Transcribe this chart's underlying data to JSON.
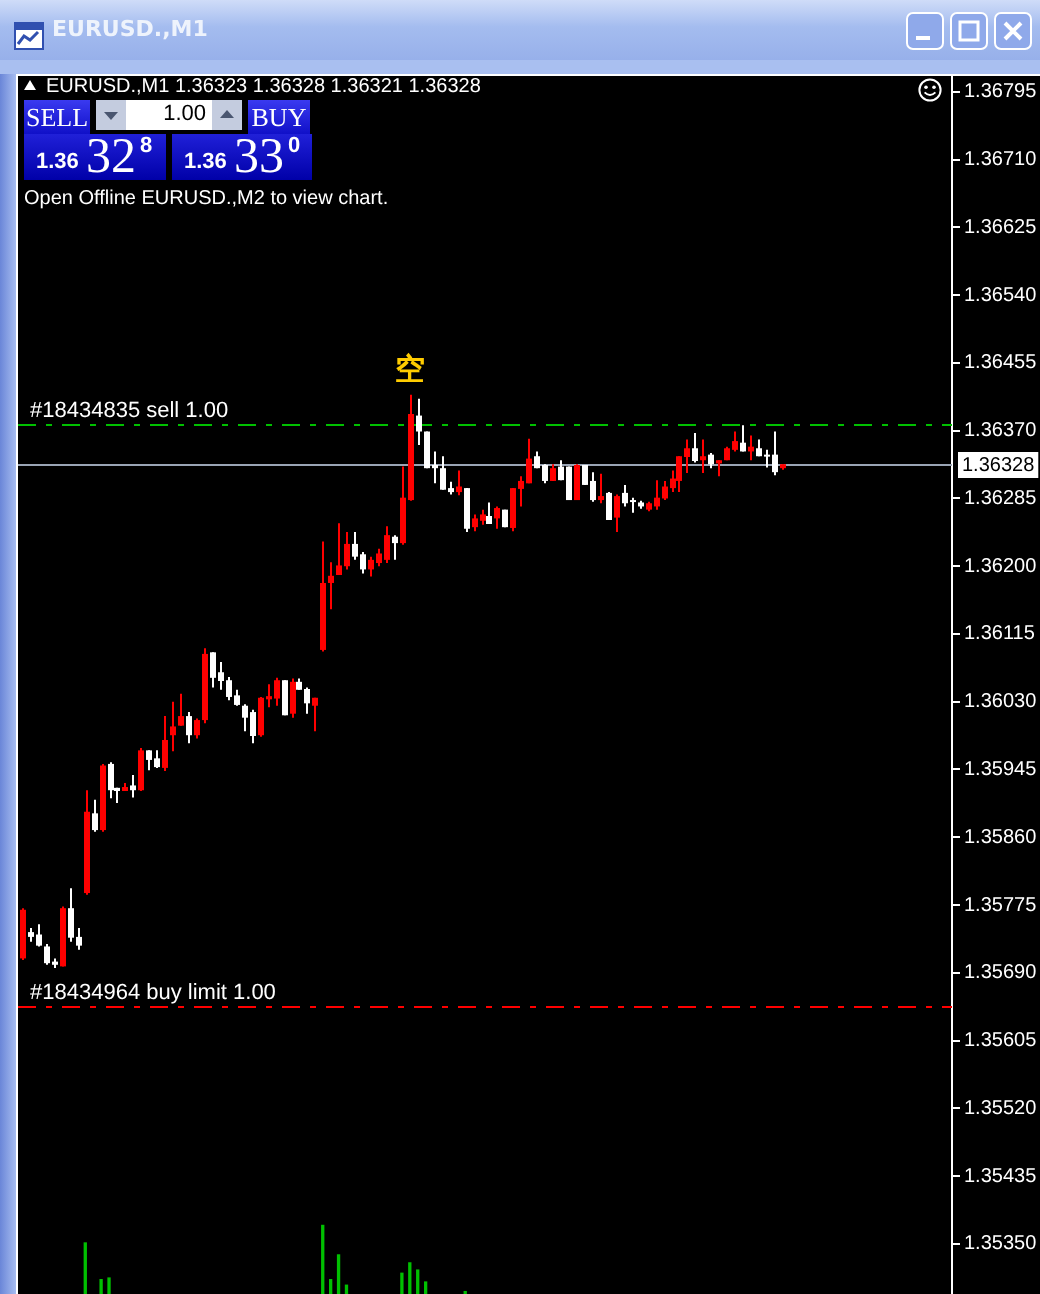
{
  "chart_data": {
    "type": "candlestick",
    "title": "EURUSD.,M1",
    "subtitle": "EURUSD.,M1 1.36323 1.36328 1.36321 1.36328",
    "categories": [
      null,
      null,
      null,
      null,
      null,
      null,
      null,
      null,
      null,
      null,
      null,
      null,
      null,
      null,
      null,
      null,
      null,
      null,
      null,
      null,
      null,
      null,
      null,
      null,
      null,
      null,
      null,
      null,
      null,
      null,
      null,
      null,
      null,
      null,
      null,
      null,
      null,
      null,
      null,
      null,
      null,
      null,
      null,
      null,
      null,
      null,
      null,
      null,
      null,
      null,
      null,
      null,
      null,
      null,
      null,
      null,
      null,
      null,
      null,
      null,
      null,
      null,
      null,
      null,
      null,
      null,
      null,
      null,
      null,
      null,
      null,
      null,
      null,
      null,
      null,
      null,
      null,
      null,
      null,
      null,
      null,
      null,
      null,
      null,
      null,
      null,
      null,
      null,
      null,
      null,
      null,
      null,
      null,
      null,
      null,
      null,
      null,
      null,
      null,
      null,
      null,
      null,
      null,
      null,
      null,
      null,
      null,
      null,
      null,
      null,
      null,
      null,
      null,
      null,
      null,
      null,
      null,
      null
    ],
    "series": [
      {
        "ohlc": [
          [
            1.35708,
            1.35771,
            1.35706,
            1.35769
          ],
          [
            1.35741,
            1.35746,
            1.35729,
            1.35735
          ],
          [
            1.35738,
            1.35751,
            1.35723,
            1.35724
          ],
          [
            1.35723,
            1.35726,
            1.357,
            1.35702
          ],
          [
            1.35704,
            1.35708,
            1.35696,
            1.357
          ],
          [
            1.35698,
            1.35773,
            1.35698,
            1.35771
          ],
          [
            1.35771,
            1.35796,
            1.35729,
            1.35734
          ],
          [
            1.35735,
            1.35746,
            1.35719,
            1.35724
          ],
          [
            1.3579,
            1.35919,
            1.35788,
            1.35892
          ],
          [
            1.3589,
            1.35907,
            1.35867,
            1.35869
          ],
          [
            1.35869,
            1.35952,
            1.35867,
            1.3595
          ],
          [
            1.35952,
            1.35954,
            1.35909,
            1.35919
          ],
          [
            1.35922,
            1.35922,
            1.35903,
            1.35918
          ],
          [
            1.35918,
            1.35928,
            1.35918,
            1.35923
          ],
          [
            1.35925,
            1.35938,
            1.3591,
            1.35919
          ],
          [
            1.35919,
            1.35972,
            1.35918,
            1.35969
          ],
          [
            1.35969,
            1.35969,
            1.35944,
            1.35957
          ],
          [
            1.35959,
            1.35969,
            1.35947,
            1.35948
          ],
          [
            1.35947,
            1.36012,
            1.35943,
            1.35982
          ],
          [
            1.35988,
            1.3603,
            1.35968,
            1.35999
          ],
          [
            1.36,
            1.3604,
            1.36,
            1.36012
          ],
          [
            1.36012,
            1.36017,
            1.35978,
            1.35988
          ],
          [
            1.35988,
            1.36009,
            1.35984,
            1.36007
          ],
          [
            1.36007,
            1.36097,
            1.36003,
            1.3609
          ],
          [
            1.36092,
            1.36092,
            1.36048,
            1.3606
          ],
          [
            1.36067,
            1.3608,
            1.36045,
            1.36056
          ],
          [
            1.36057,
            1.36061,
            1.36032,
            1.36036
          ],
          [
            1.36038,
            1.36045,
            1.36025,
            1.36026
          ],
          [
            1.36025,
            1.36027,
            1.35993,
            1.3601
          ],
          [
            1.36017,
            1.3602,
            1.35978,
            1.35987
          ],
          [
            1.35988,
            1.36036,
            1.35986,
            1.36035
          ],
          [
            1.36033,
            1.36052,
            1.36023,
            1.36037
          ],
          [
            1.36034,
            1.3606,
            1.36025,
            1.36057
          ],
          [
            1.36057,
            1.36057,
            1.36013,
            1.36013
          ],
          [
            1.36015,
            1.36059,
            1.3601,
            1.36055
          ],
          [
            1.36055,
            1.36059,
            1.36045,
            1.36045
          ],
          [
            1.36046,
            1.36048,
            1.36015,
            1.36028
          ],
          [
            1.36025,
            1.36035,
            1.35993,
            1.36035
          ],
          [
            1.36095,
            1.36231,
            1.36093,
            1.36179
          ],
          [
            1.36179,
            1.36205,
            1.36146,
            1.36188
          ],
          [
            1.36189,
            1.36254,
            1.36189,
            1.36201
          ],
          [
            1.362,
            1.36243,
            1.36196,
            1.36228
          ],
          [
            1.36228,
            1.36243,
            1.36208,
            1.36212
          ],
          [
            1.36215,
            1.36218,
            1.36191,
            1.36196
          ],
          [
            1.36196,
            1.36212,
            1.36187,
            1.36208
          ],
          [
            1.36204,
            1.36222,
            1.362,
            1.36216
          ],
          [
            1.36208,
            1.3625,
            1.36204,
            1.36239
          ],
          [
            1.36237,
            1.36239,
            1.36208,
            1.36229
          ],
          [
            1.36229,
            1.36325,
            1.36227,
            1.36286
          ],
          [
            1.36283,
            1.36415,
            1.36282,
            1.36391
          ],
          [
            1.36389,
            1.3641,
            1.36352,
            1.36369
          ],
          [
            1.36369,
            1.36369,
            1.36323,
            1.36323
          ],
          [
            1.36327,
            1.36344,
            1.36304,
            1.36323
          ],
          [
            1.36323,
            1.36338,
            1.36296,
            1.36296
          ],
          [
            1.36298,
            1.36306,
            1.3629,
            1.36293
          ],
          [
            1.36293,
            1.3632,
            1.36289,
            1.363
          ],
          [
            1.36298,
            1.36298,
            1.36243,
            1.36247
          ],
          [
            1.36249,
            1.36265,
            1.36244,
            1.3626
          ],
          [
            1.36257,
            1.36271,
            1.36252,
            1.36265
          ],
          [
            1.36263,
            1.3628,
            1.36253,
            1.36253
          ],
          [
            1.3626,
            1.36275,
            1.36247,
            1.36273
          ],
          [
            1.36271,
            1.36271,
            1.36249,
            1.36249
          ],
          [
            1.36248,
            1.36298,
            1.36244,
            1.36298
          ],
          [
            1.36297,
            1.36313,
            1.36275,
            1.36307
          ],
          [
            1.36304,
            1.3636,
            1.36304,
            1.36335
          ],
          [
            1.36338,
            1.36344,
            1.36323,
            1.36323
          ],
          [
            1.36327,
            1.36328,
            1.36304,
            1.36307
          ],
          [
            1.36307,
            1.36328,
            1.36307,
            1.36323
          ],
          [
            1.36325,
            1.36333,
            1.36308,
            1.36308
          ],
          [
            1.36325,
            1.36325,
            1.36283,
            1.36283
          ],
          [
            1.36283,
            1.36328,
            1.36283,
            1.36327
          ],
          [
            1.36327,
            1.36327,
            1.36302,
            1.36302
          ],
          [
            1.36307,
            1.36318,
            1.36281,
            1.36283
          ],
          [
            1.36283,
            1.36316,
            1.36279,
            1.36288
          ],
          [
            1.36292,
            1.36293,
            1.36258,
            1.36258
          ],
          [
            1.36261,
            1.3629,
            1.36243,
            1.36288
          ],
          [
            1.36292,
            1.36302,
            1.36275,
            1.36279
          ],
          [
            1.36283,
            1.36286,
            1.36267,
            1.36281
          ],
          [
            1.3628,
            1.36282,
            1.36272,
            1.36275
          ],
          [
            1.36271,
            1.36281,
            1.36269,
            1.36279
          ],
          [
            1.36275,
            1.36308,
            1.36271,
            1.36286
          ],
          [
            1.36285,
            1.36307,
            1.36283,
            1.363
          ],
          [
            1.36298,
            1.3632,
            1.36293,
            1.3631
          ],
          [
            1.36307,
            1.36338,
            1.36293,
            1.36338
          ],
          [
            1.36337,
            1.36359,
            1.36317,
            1.36348
          ],
          [
            1.36348,
            1.36367,
            1.3633,
            1.36332
          ],
          [
            1.36333,
            1.36359,
            1.36317,
            1.36338
          ],
          [
            1.3634,
            1.36342,
            1.36323,
            1.36328
          ],
          [
            1.36329,
            1.36333,
            1.36313,
            1.36333
          ],
          [
            1.36333,
            1.3635,
            1.36333,
            1.36348
          ],
          [
            1.36346,
            1.36369,
            1.36344,
            1.36357
          ],
          [
            1.36355,
            1.36377,
            1.36344,
            1.36344
          ],
          [
            1.36344,
            1.36364,
            1.36333,
            1.3635
          ],
          [
            1.36348,
            1.36359,
            1.36338,
            1.36338
          ],
          [
            1.3634,
            1.36346,
            1.36324,
            1.36338
          ],
          [
            1.3634,
            1.36369,
            1.36314,
            1.36318
          ],
          [
            1.36323,
            1.36328,
            1.36321,
            1.36328
          ],
          null,
          null,
          null,
          null,
          null,
          null,
          null,
          null,
          null,
          null,
          null,
          null,
          null,
          null,
          null,
          null,
          null,
          null,
          null,
          null,
          null
        ],
        "colors": [
          "#ff0000",
          "#ffffff",
          "#ffffff",
          "#ffffff",
          "#ffffff",
          "#ff0000",
          "#ffffff",
          "#ffffff",
          "#ff0000",
          "#ffffff",
          "#ff0000",
          "#ffffff",
          "#ffffff",
          "#ff0000",
          "#ffffff",
          "#ff0000",
          "#ffffff",
          "#ffffff",
          "#ff0000",
          "#ff0000",
          "#ff0000",
          "#ffffff",
          "#ff0000",
          "#ff0000",
          "#ffffff",
          "#ffffff",
          "#ffffff",
          "#ffffff",
          "#ffffff",
          "#ffffff",
          "#ff0000",
          "#ff0000",
          "#ff0000",
          "#ffffff",
          "#ff0000",
          "#ffffff",
          "#ffffff",
          "#ff0000",
          "#ff0000",
          "#ff0000",
          "#ff0000",
          "#ff0000",
          "#ffffff",
          "#ffffff",
          "#ff0000",
          "#ff0000",
          "#ff0000",
          "#ffffff",
          "#ff0000",
          "#ff0000",
          "#ffffff",
          "#ffffff",
          "#ffffff",
          "#ffffff",
          "#ffffff",
          "#ff0000",
          "#ffffff",
          "#ff0000",
          "#ff0000",
          "#ffffff",
          "#ff0000",
          "#ffffff",
          "#ff0000",
          "#ff0000",
          "#ff0000",
          "#ffffff",
          "#ffffff",
          "#ff0000",
          "#ffffff",
          "#ffffff",
          "#ff0000",
          "#ffffff",
          "#ffffff",
          "#ff0000",
          "#ffffff",
          "#ff0000",
          "#ffffff",
          "#ffffff",
          "#ffffff",
          "#ff0000",
          "#ff0000",
          "#ff0000",
          "#ff0000",
          "#ff0000",
          "#ff0000",
          "#ffffff",
          "#ff0000",
          "#ffffff",
          "#ff0000",
          "#ff0000",
          "#ff0000",
          "#ffffff",
          "#ff0000",
          "#ffffff",
          "#ffffff",
          "#ffffff",
          "#ff0000",
          null,
          null,
          null,
          null,
          null,
          null,
          null,
          null,
          null,
          null,
          null,
          null,
          null,
          null,
          null,
          null,
          null,
          null,
          null,
          null,
          null
        ]
      },
      {
        "type": "bar",
        "color": "#00c000",
        "base": [
          null,
          null,
          null,
          null,
          null,
          null,
          null,
          null,
          1.35287,
          null,
          1.35287,
          1.35287,
          null,
          null,
          null,
          null,
          null,
          null,
          null,
          null,
          null,
          null,
          null,
          null,
          null,
          null,
          null,
          null,
          null,
          null,
          null,
          null,
          null,
          null,
          null,
          null,
          null,
          null,
          1.35287,
          1.35287,
          1.35287,
          1.35287,
          null,
          null,
          null,
          null,
          null,
          null,
          1.35287,
          1.35287,
          1.35287,
          1.35287,
          null,
          null,
          null,
          null,
          1.35287,
          null,
          null,
          null,
          null,
          null,
          null,
          null,
          null,
          null,
          null,
          null,
          null,
          null,
          null,
          null,
          null,
          null,
          null,
          null,
          null,
          null,
          null,
          null,
          null,
          null,
          null,
          null,
          null,
          null,
          null,
          null,
          null,
          null,
          null,
          null,
          null,
          null,
          null,
          null,
          null,
          null,
          null,
          null,
          null,
          null,
          null,
          null,
          null,
          null,
          null,
          null,
          null,
          null,
          null,
          null,
          null,
          null,
          null,
          null,
          null,
          null
        ],
        "values": [
          null,
          null,
          null,
          null,
          null,
          null,
          null,
          null,
          0.00064,
          null,
          0.00018,
          0.0002,
          null,
          null,
          null,
          null,
          null,
          null,
          null,
          null,
          null,
          null,
          null,
          null,
          null,
          null,
          null,
          null,
          null,
          null,
          null,
          null,
          null,
          null,
          null,
          null,
          null,
          null,
          0.00086,
          0.00018,
          0.00049,
          0.00011,
          null,
          null,
          null,
          null,
          null,
          null,
          0.00026,
          0.00039,
          0.0003,
          0.00015,
          null,
          null,
          null,
          null,
          3e-05,
          null,
          null,
          null,
          null,
          null,
          null,
          null,
          null,
          null,
          null,
          null,
          null,
          null,
          null,
          null,
          null,
          null,
          null,
          null,
          null,
          null,
          null,
          null,
          null,
          null,
          null,
          null,
          null,
          null,
          null,
          null,
          null,
          null,
          null,
          null,
          null,
          null,
          null,
          null,
          null,
          null,
          null,
          null,
          null,
          null,
          null,
          null,
          null,
          null,
          null,
          null,
          null,
          null,
          null,
          null,
          null,
          null,
          null,
          null,
          null,
          null
        ]
      }
    ],
    "ylim": [
      1.35287,
      1.36815
    ],
    "yticks": [
      {
        "value": 1.3535,
        "label": "1.35350"
      },
      1.35435,
      {
        "value": 1.3552,
        "label": "1.35520"
      },
      1.35605,
      {
        "value": 1.3569,
        "label": "1.35690"
      },
      1.35775,
      {
        "value": 1.3586,
        "label": "1.35860"
      },
      1.35945,
      {
        "value": 1.3603,
        "label": "1.36030"
      },
      1.36115,
      {
        "value": 1.362,
        "label": "1.36200"
      },
      1.36285,
      {
        "value": 1.3637,
        "label": "1.36370"
      },
      1.36455,
      {
        "value": 1.3654,
        "label": "1.36540"
      },
      1.36625,
      {
        "value": 1.3671,
        "label": "1.36710"
      },
      1.36795
    ],
    "tick_labels": "y",
    "ref_lines": [
      {
        "axis": "y",
        "value": 1.36378,
        "label": "#18434835 sell 1.00",
        "color": "#00c000",
        "line_style": "dashed"
      },
      {
        "axis": "y",
        "value": 1.36328,
        "label": "1.36328",
        "color": "#9aa4b4",
        "line_style": "solid"
      },
      {
        "axis": "y",
        "value": 1.35648,
        "label": "#18434964 buy limit 1.00",
        "color": "#ff0000",
        "line_style": "dashed"
      }
    ],
    "annotations": [
      "Open Offline EURUSD.,M2 to view chart.",
      "SELL",
      "1.00",
      "BUY",
      "1.36",
      "32",
      "8",
      "1.36",
      "33",
      "0",
      "空"
    ]
  }
}
